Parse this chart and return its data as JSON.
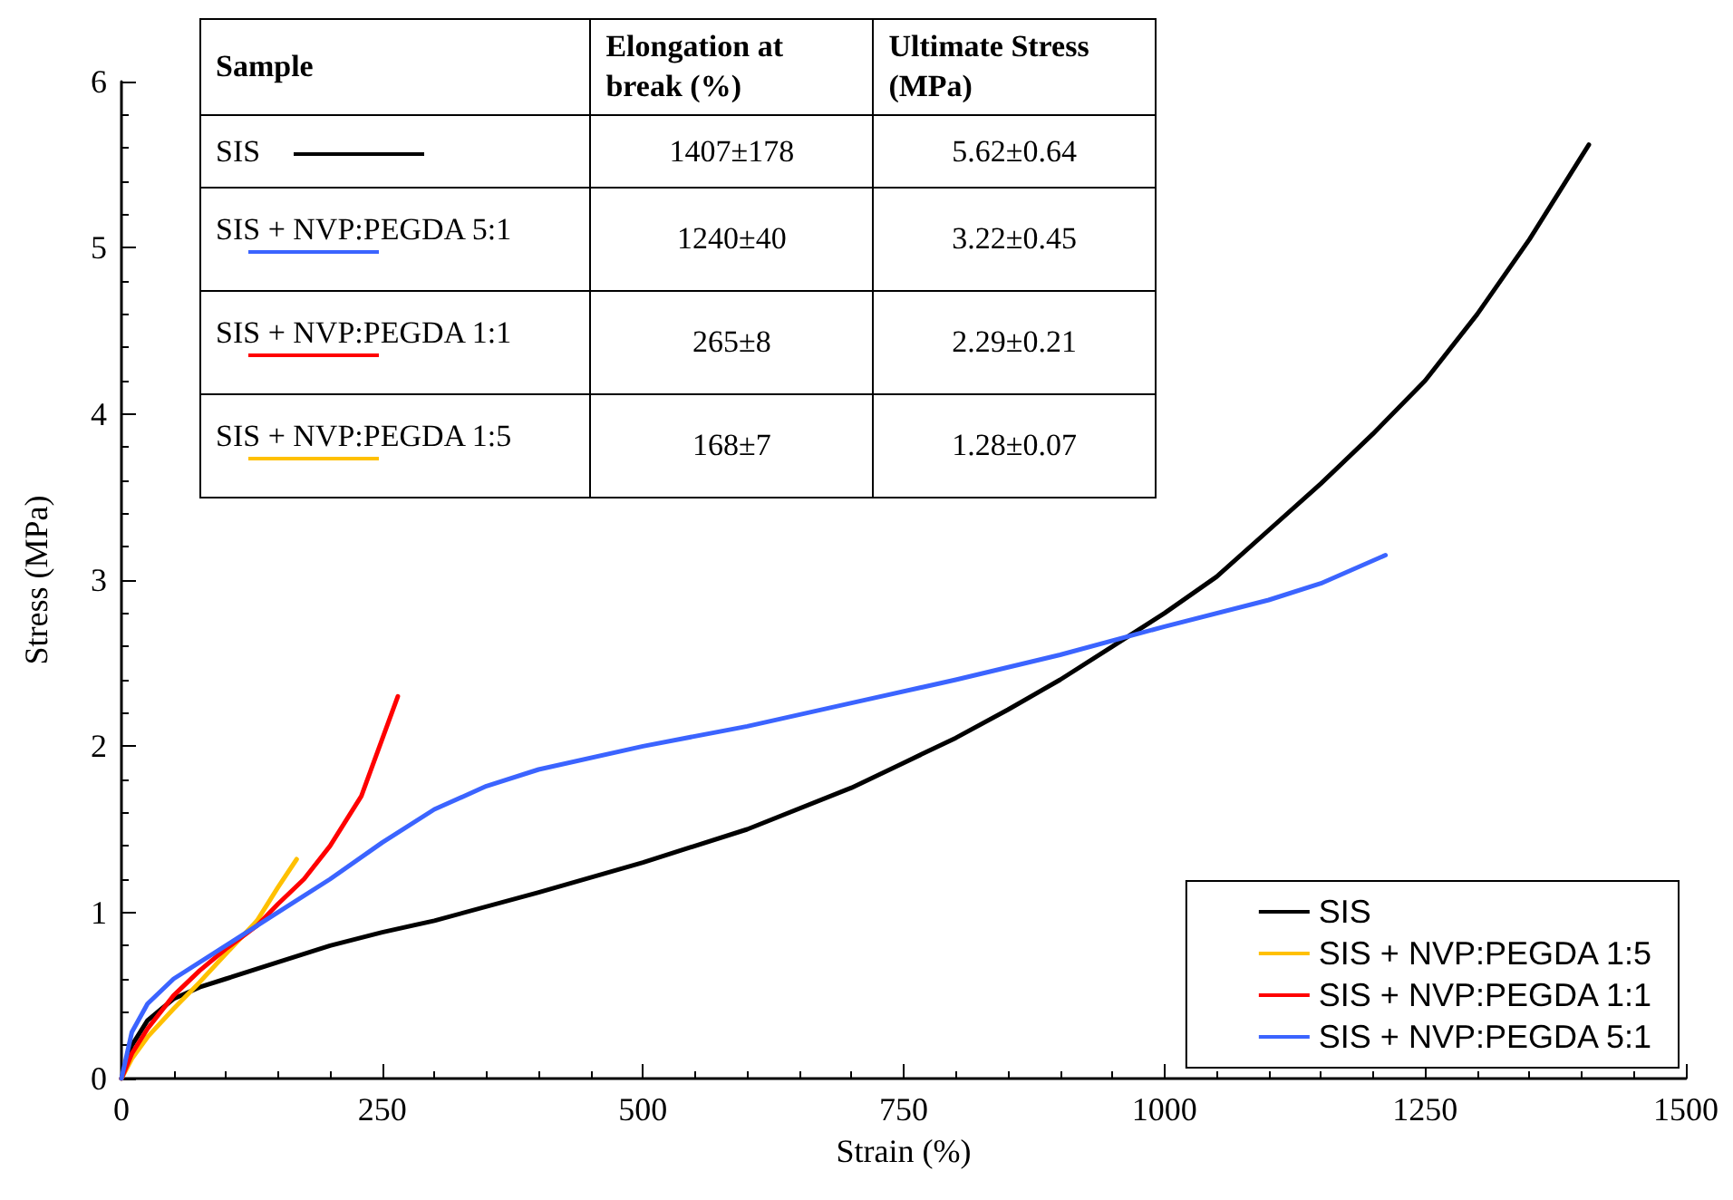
{
  "chart_data": {
    "type": "line",
    "xlabel": "Strain (%)",
    "ylabel": "Stress (MPa)",
    "xlim": [
      0,
      1500
    ],
    "xticks": [
      0,
      250,
      500,
      750,
      1000,
      1250,
      1500
    ],
    "ylim": [
      0,
      6
    ],
    "yticks": [
      0,
      1,
      2,
      3,
      4,
      5,
      6
    ],
    "grid": false,
    "legend": "bottom right",
    "marker": "none",
    "line_style": "solid",
    "series": [
      {
        "name": "SIS",
        "color": "#000000",
        "x": [
          0,
          10,
          25,
          50,
          75,
          100,
          150,
          200,
          250,
          300,
          400,
          500,
          600,
          700,
          750,
          800,
          850,
          900,
          950,
          1000,
          1050,
          1100,
          1150,
          1200,
          1250,
          1300,
          1350,
          1407
        ],
        "values": [
          0,
          0.2,
          0.35,
          0.48,
          0.55,
          0.6,
          0.7,
          0.8,
          0.88,
          0.95,
          1.12,
          1.3,
          1.5,
          1.75,
          1.9,
          2.05,
          2.22,
          2.4,
          2.6,
          2.8,
          3.02,
          3.3,
          3.58,
          3.88,
          4.2,
          4.6,
          5.05,
          5.62
        ]
      },
      {
        "name": "SIS + NVP:PEGDA 1:5",
        "color": "#ffc000",
        "x": [
          0,
          10,
          25,
          50,
          75,
          100,
          130,
          150,
          168
        ],
        "values": [
          0,
          0.12,
          0.25,
          0.42,
          0.58,
          0.75,
          0.95,
          1.15,
          1.32
        ]
      },
      {
        "name": "SIS + NVP:PEGDA 1:1",
        "color": "#ff0000",
        "x": [
          0,
          10,
          25,
          50,
          75,
          100,
          130,
          150,
          175,
          200,
          230,
          265
        ],
        "values": [
          0,
          0.15,
          0.3,
          0.5,
          0.65,
          0.78,
          0.92,
          1.05,
          1.2,
          1.4,
          1.7,
          2.3
        ]
      },
      {
        "name": "SIS + NVP:PEGDA 5:1",
        "color": "#3b64ff",
        "x": [
          0,
          10,
          25,
          50,
          100,
          150,
          200,
          250,
          300,
          350,
          400,
          500,
          600,
          700,
          800,
          900,
          1000,
          1100,
          1150,
          1212
        ],
        "values": [
          0,
          0.28,
          0.45,
          0.6,
          0.8,
          1.0,
          1.2,
          1.42,
          1.62,
          1.76,
          1.86,
          2.0,
          2.12,
          2.26,
          2.4,
          2.55,
          2.72,
          2.88,
          2.98,
          3.15
        ]
      }
    ],
    "annotations": [
      "Sample",
      "Elongation at break (%)",
      "Ultimate Stress (MPa)",
      "SIS",
      "1407±178",
      "5.62±0.64",
      "SIS + NVP:PEGDA 5:1",
      "1240±40",
      "3.22±0.45",
      "SIS + NVP:PEGDA 1:1",
      "265±8",
      "2.29±0.21",
      "SIS + NVP:PEGDA 1:5",
      "168±7",
      "1.28±0.07"
    ]
  }
}
